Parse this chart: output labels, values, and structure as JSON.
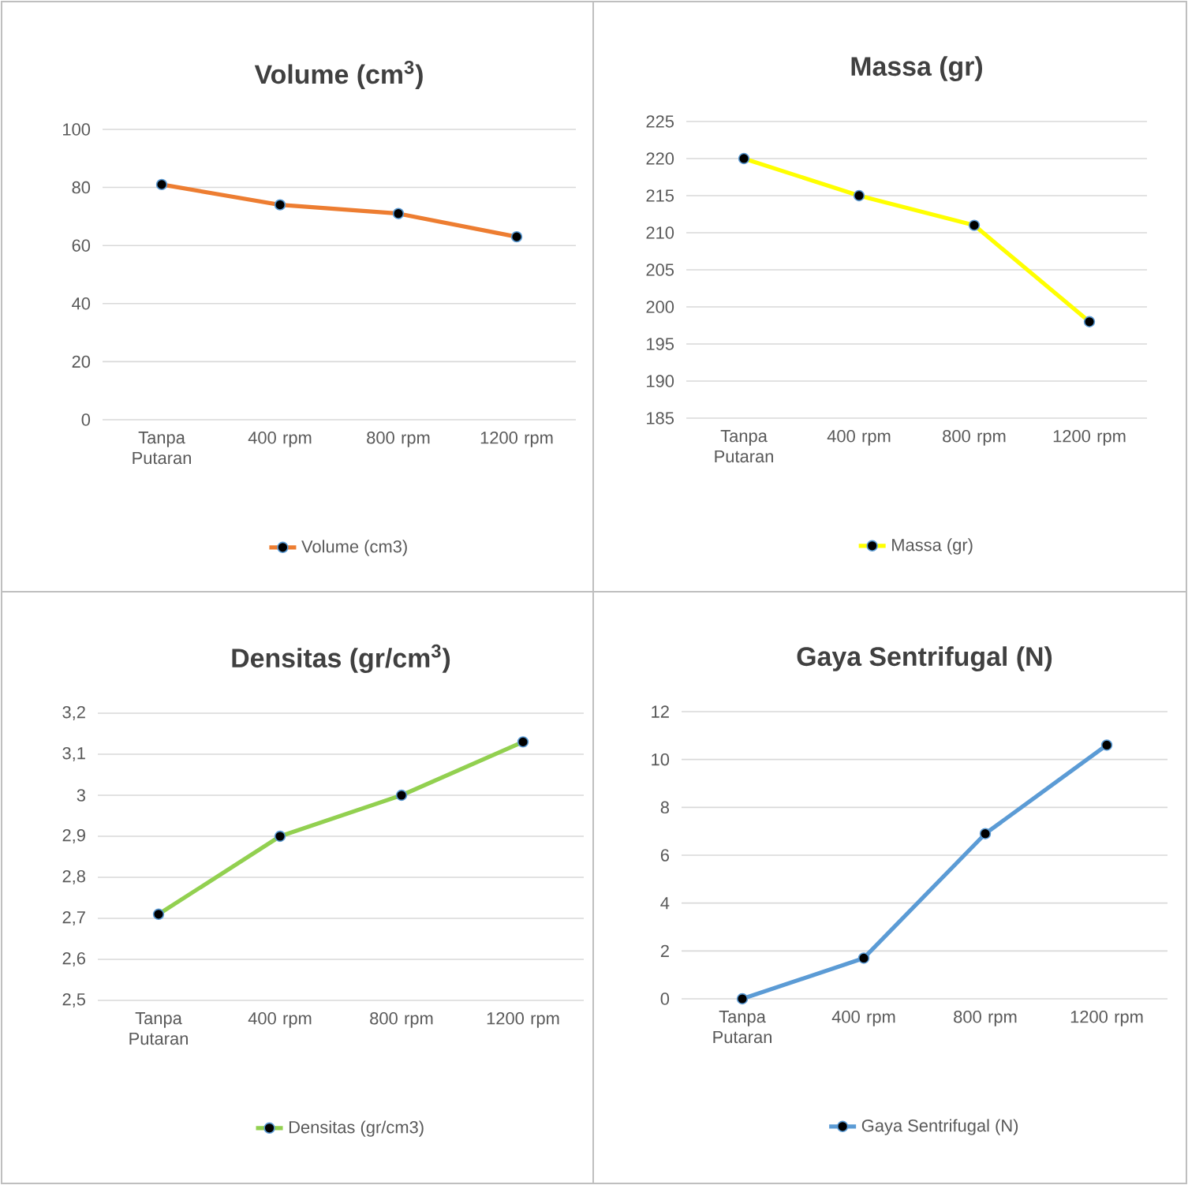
{
  "chart_data": [
    {
      "type": "line",
      "title": "Volume (cm$^{3}$)",
      "categories": [
        "Tanpa Putaran",
        "400 rpm",
        "800 rpm",
        "1200 rpm"
      ],
      "series": [
        {
          "name": "Volume (cm3)",
          "color": "#ed7d31",
          "values": [
            81,
            74,
            71,
            63
          ]
        }
      ],
      "ylim": [
        0,
        100
      ],
      "yticks": [
        0,
        20,
        40,
        60,
        80,
        100
      ],
      "grid": "y",
      "legend": "bottom",
      "marker": "circle"
    },
    {
      "type": "line",
      "title": "Massa (gr)",
      "categories": [
        "Tanpa Putaran",
        "400 rpm",
        "800 rpm",
        "1200 rpm"
      ],
      "series": [
        {
          "name": "Massa (gr)",
          "color": "#ffff00",
          "values": [
            220,
            215,
            211,
            198
          ]
        }
      ],
      "ylim": [
        185,
        225
      ],
      "yticks": [
        185,
        190,
        195,
        200,
        205,
        210,
        215,
        220,
        225
      ],
      "grid": "y",
      "legend": "bottom",
      "marker": "circle"
    },
    {
      "type": "line",
      "title": "Densitas (gr/cm$^{3}$)",
      "categories": [
        "Tanpa Putaran",
        "400 rpm",
        "800 rpm",
        "1200 rpm"
      ],
      "series": [
        {
          "name": "Densitas (gr/cm3)",
          "color": "#92d050",
          "values": [
            2.71,
            2.9,
            3.0,
            3.13
          ]
        }
      ],
      "ylim": [
        2.5,
        3.2
      ],
      "yticks": [
        {
          "value": 2.5,
          "label": "2,5"
        },
        {
          "value": 2.6,
          "label": "2,6"
        },
        {
          "value": 2.7,
          "label": "2,7"
        },
        {
          "value": 2.8,
          "label": "2,8"
        },
        {
          "value": 2.9,
          "label": "2,9"
        },
        3,
        {
          "value": 3.1,
          "label": "3,1"
        },
        {
          "value": 3.2,
          "label": "3,2"
        }
      ],
      "grid": "y",
      "legend": "bottom",
      "marker": "circle"
    },
    {
      "type": "line",
      "title": "Gaya Sentrifugal (N)",
      "categories": [
        "Tanpa Putaran",
        "400 rpm",
        "800 rpm",
        "1200 rpm"
      ],
      "series": [
        {
          "name": "Gaya Sentrifugal (N)",
          "color": "#5b9bd5",
          "values": [
            0,
            1.7,
            6.9,
            10.6
          ]
        }
      ],
      "ylim": [
        0,
        12
      ],
      "yticks": [
        0,
        2,
        4,
        6,
        8,
        10,
        12
      ],
      "grid": "y",
      "legend": "bottom",
      "marker": "circle"
    }
  ]
}
